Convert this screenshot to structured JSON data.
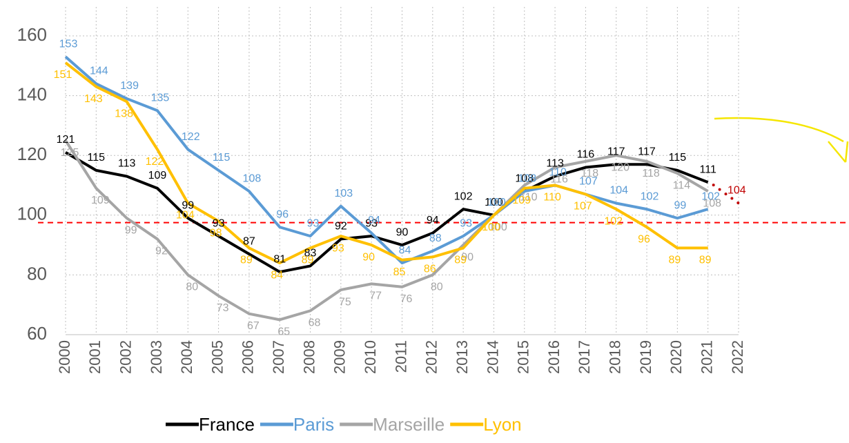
{
  "chart_data": {
    "type": "line",
    "categories": [
      "2000",
      "2001",
      "2002",
      "2003",
      "2004",
      "2005",
      "2006",
      "2007",
      "2008",
      "2009",
      "2010",
      "2011",
      "2012",
      "2013",
      "2014",
      "2015",
      "2016",
      "2017",
      "2018",
      "2019",
      "2020",
      "2021",
      "2022"
    ],
    "series": [
      {
        "name": "France",
        "color": "#000000",
        "values": [
          121,
          115,
          113,
          109,
          99,
          93,
          87,
          81,
          83,
          92,
          93,
          90,
          94,
          102,
          100,
          108,
          113,
          116,
          117,
          117,
          115,
          111,
          null
        ]
      },
      {
        "name": "Paris",
        "color": "#5b9bd5",
        "values": [
          153,
          144,
          139,
          135,
          122,
          115,
          108,
          96,
          93,
          103,
          94,
          84,
          88,
          93,
          100,
          108,
          110,
          107,
          104,
          102,
          99,
          102,
          null
        ]
      },
      {
        "name": "Marseille",
        "color": "#a5a5a5",
        "values": [
          125,
          109,
          99,
          92,
          80,
          73,
          67,
          65,
          68,
          75,
          77,
          76,
          80,
          90,
          100,
          110,
          116,
          118,
          120,
          118,
          114,
          108,
          null
        ]
      },
      {
        "name": "Lyon",
        "color": "#ffc000",
        "values": [
          151,
          143,
          138,
          122,
          104,
          98,
          89,
          84,
          89,
          93,
          90,
          85,
          86,
          89,
          100,
          109,
          110,
          107,
          102,
          96,
          89,
          89,
          null
        ]
      }
    ],
    "projection": {
      "color": "#c00000",
      "category": 22,
      "value": 104
    },
    "reference_line": {
      "value": 97.5,
      "color": "#ff0000"
    },
    "ylim": [
      60,
      160
    ],
    "yticks": [
      60,
      80,
      100,
      120,
      140,
      160
    ],
    "grid": true
  }
}
